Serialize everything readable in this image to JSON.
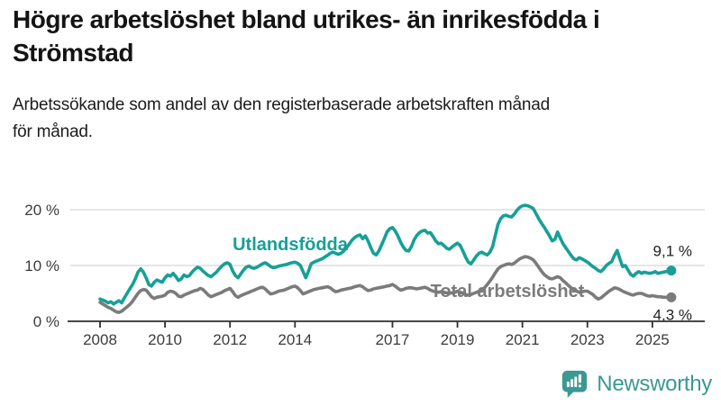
{
  "header": {
    "title": "Högre arbetslöshet bland utrikes- än inrikesfödda i\nStrömstad",
    "subtitle": "Arbetssökande som andel av den registerbaserade arbetskraften månad\nför månad."
  },
  "chart_data": {
    "type": "line",
    "title": "",
    "xlabel": "",
    "ylabel": "",
    "grid": "horizontal-at-10-and-20",
    "x_start_year": 2008,
    "x_step_months": 1,
    "x_end": "2025-08",
    "xlim_years": [
      2007.0,
      2026.6
    ],
    "ylim": [
      0,
      22
    ],
    "x_ticks": [
      2008,
      2010,
      2012,
      2014,
      2017,
      2019,
      2021,
      2023,
      2025
    ],
    "y_ticks": [
      {
        "value": 0,
        "label": "0 %",
        "gridline": false
      },
      {
        "value": 10,
        "label": "10 %",
        "gridline": true
      },
      {
        "value": 20,
        "label": "20 %",
        "gridline": true
      }
    ],
    "legend_position": "inline-labels-on-lines",
    "series": [
      {
        "name": "Utlandsfödda",
        "color": "#16A096",
        "end_label": "9,1 %",
        "last_value": 9.1,
        "values": [
          4.0,
          3.8,
          3.6,
          3.3,
          3.5,
          3.1,
          3.4,
          3.7,
          3.3,
          4.2,
          5.0,
          5.8,
          6.6,
          7.6,
          8.8,
          9.4,
          8.8,
          7.8,
          6.6,
          6.3,
          7.0,
          7.4,
          7.2,
          7.0,
          7.8,
          8.3,
          8.1,
          8.6,
          8.0,
          7.3,
          7.6,
          8.3,
          8.0,
          8.2,
          8.8,
          9.3,
          9.7,
          9.5,
          9.0,
          8.6,
          8.2,
          8.0,
          8.4,
          8.8,
          9.4,
          9.9,
          10.3,
          10.5,
          10.2,
          9.0,
          8.2,
          7.8,
          8.5,
          9.2,
          9.7,
          9.9,
          9.6,
          9.5,
          9.7,
          10.0,
          10.3,
          10.5,
          10.2,
          9.8,
          9.6,
          9.7,
          9.9,
          10.0,
          10.1,
          10.2,
          10.4,
          10.5,
          10.6,
          10.4,
          10.0,
          8.9,
          7.8,
          9.0,
          10.3,
          10.6,
          10.8,
          11.0,
          11.2,
          11.5,
          11.8,
          12.2,
          12.4,
          12.2,
          12.0,
          12.2,
          12.6,
          13.2,
          13.8,
          14.5,
          15.0,
          15.3,
          15.5,
          14.8,
          15.3,
          14.4,
          13.2,
          12.2,
          11.9,
          12.6,
          13.7,
          14.8,
          16.0,
          16.6,
          16.8,
          16.2,
          15.3,
          14.2,
          13.3,
          12.7,
          12.6,
          13.4,
          14.6,
          15.4,
          15.9,
          16.2,
          16.3,
          15.8,
          15.9,
          15.2,
          14.4,
          13.9,
          14.0,
          13.6,
          13.1,
          12.9,
          13.3,
          13.7,
          14.0,
          13.6,
          12.6,
          11.5,
          10.6,
          10.3,
          11.0,
          11.7,
          12.2,
          12.4,
          12.1,
          11.9,
          12.4,
          13.4,
          15.4,
          17.4,
          18.4,
          18.9,
          19.0,
          18.8,
          18.7,
          19.2,
          19.9,
          20.4,
          20.7,
          20.8,
          20.7,
          20.5,
          20.2,
          19.3,
          18.4,
          17.6,
          16.9,
          16.1,
          15.3,
          14.4,
          14.7,
          16.0,
          14.9,
          13.9,
          13.2,
          12.5,
          11.8,
          11.2,
          11.0,
          11.4,
          11.2,
          10.9,
          10.6,
          10.2,
          9.8,
          9.5,
          9.1,
          8.9,
          9.4,
          10.0,
          10.4,
          10.7,
          11.8,
          12.7,
          11.2,
          9.8,
          10.0,
          9.2,
          8.4,
          8.1,
          8.6,
          8.9,
          8.6,
          8.8,
          8.7,
          8.6,
          8.7,
          8.9,
          8.6,
          8.7,
          8.8,
          8.9,
          9.0,
          9.1
        ]
      },
      {
        "name": "Total arbetslöshet",
        "color": "#7B7B7B",
        "end_label": "4,3 %",
        "last_value": 4.3,
        "values": [
          3.4,
          3.1,
          2.8,
          2.5,
          2.3,
          2.0,
          1.7,
          1.6,
          1.8,
          2.2,
          2.6,
          3.0,
          3.6,
          4.3,
          5.0,
          5.5,
          5.7,
          5.6,
          5.0,
          4.4,
          4.1,
          4.3,
          4.4,
          4.5,
          4.7,
          5.2,
          5.4,
          5.3,
          5.0,
          4.5,
          4.4,
          4.7,
          4.9,
          5.1,
          5.3,
          5.5,
          5.6,
          5.9,
          5.7,
          5.2,
          4.7,
          4.4,
          4.6,
          4.8,
          5.0,
          5.2,
          5.5,
          5.7,
          5.9,
          5.3,
          4.6,
          4.3,
          4.6,
          4.8,
          5.0,
          5.2,
          5.4,
          5.6,
          5.8,
          6.0,
          6.1,
          5.8,
          5.3,
          4.9,
          5.0,
          5.2,
          5.4,
          5.5,
          5.6,
          5.8,
          6.0,
          6.2,
          6.3,
          6.0,
          5.5,
          4.9,
          5.1,
          5.3,
          5.5,
          5.7,
          5.8,
          5.9,
          6.0,
          6.1,
          6.2,
          6.0,
          5.6,
          5.3,
          5.4,
          5.6,
          5.7,
          5.8,
          5.9,
          6.0,
          6.2,
          6.3,
          6.4,
          6.2,
          5.8,
          5.5,
          5.6,
          5.8,
          5.9,
          6.0,
          6.1,
          6.2,
          6.3,
          6.4,
          6.6,
          6.3,
          5.9,
          5.6,
          5.7,
          5.9,
          6.0,
          6.0,
          5.9,
          5.8,
          5.9,
          6.0,
          6.1,
          5.9,
          5.6,
          5.4,
          5.3,
          5.2,
          5.3,
          5.2,
          5.1,
          5.0,
          5.1,
          5.2,
          5.4,
          5.2,
          5.0,
          4.8,
          4.7,
          4.8,
          5.0,
          5.2,
          5.4,
          5.6,
          6.0,
          6.6,
          7.2,
          7.9,
          8.7,
          9.4,
          9.8,
          10.0,
          10.2,
          10.3,
          10.2,
          10.4,
          10.8,
          11.2,
          11.4,
          11.6,
          11.5,
          11.3,
          11.0,
          10.4,
          9.7,
          9.0,
          8.4,
          8.0,
          7.7,
          7.6,
          7.8,
          8.0,
          7.8,
          7.3,
          6.9,
          6.4,
          6.0,
          5.7,
          5.4,
          5.2,
          5.3,
          5.4,
          5.4,
          5.1,
          4.8,
          4.3,
          4.0,
          4.2,
          4.6,
          5.0,
          5.4,
          5.7,
          6.0,
          5.9,
          5.7,
          5.4,
          5.2,
          5.0,
          4.8,
          4.7,
          4.9,
          5.0,
          5.0,
          4.8,
          4.6,
          4.5,
          4.6,
          4.5,
          4.4,
          4.4,
          4.3,
          4.3,
          4.3,
          4.3
        ]
      }
    ]
  },
  "footer": {
    "brand": "Newsworthy",
    "brand_color": "#3B9892",
    "logo_icon": "bar-chart-speech-bubble"
  },
  "colors": {
    "foreign_born_line": "#16A096",
    "total_line": "#7B7B7B",
    "gridline": "#DDDDDD",
    "axis": "#2E2E2E",
    "text": "#141414"
  }
}
